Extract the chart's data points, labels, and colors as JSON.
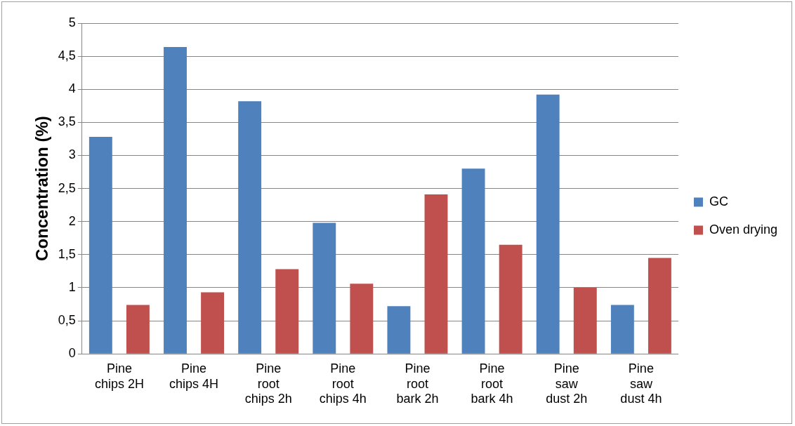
{
  "chart_data": {
    "type": "bar",
    "ylabel": "Concentration (%)",
    "categories": [
      "Pine chips 2H",
      "Pine chips 4H",
      "Pine root chips 2h",
      "Pine root chips 4h",
      "Pine root bark 2h",
      "Pine root bark 4h",
      "Pine saw dust 2h",
      "Pine saw dust 4h"
    ],
    "series": [
      {
        "name": "GC",
        "color": "#4f81bd",
        "values": [
          3.28,
          4.64,
          3.82,
          1.98,
          0.72,
          2.8,
          3.92,
          0.74
        ]
      },
      {
        "name": "Oven drying",
        "color": "#c0504d",
        "values": [
          0.74,
          0.93,
          1.28,
          1.06,
          2.41,
          1.65,
          1.0,
          1.45
        ]
      }
    ],
    "ylim": [
      0,
      5
    ],
    "yticks": [
      0,
      {
        "value": 0.5,
        "label": "0,5"
      },
      1,
      {
        "value": 1.5,
        "label": "1,5"
      },
      2,
      {
        "value": 2.5,
        "label": "2,5"
      },
      3,
      {
        "value": 3.5,
        "label": "3,5"
      },
      4,
      {
        "value": 4.5,
        "label": "4,5"
      },
      5
    ],
    "grid": "y",
    "legend": "right"
  }
}
